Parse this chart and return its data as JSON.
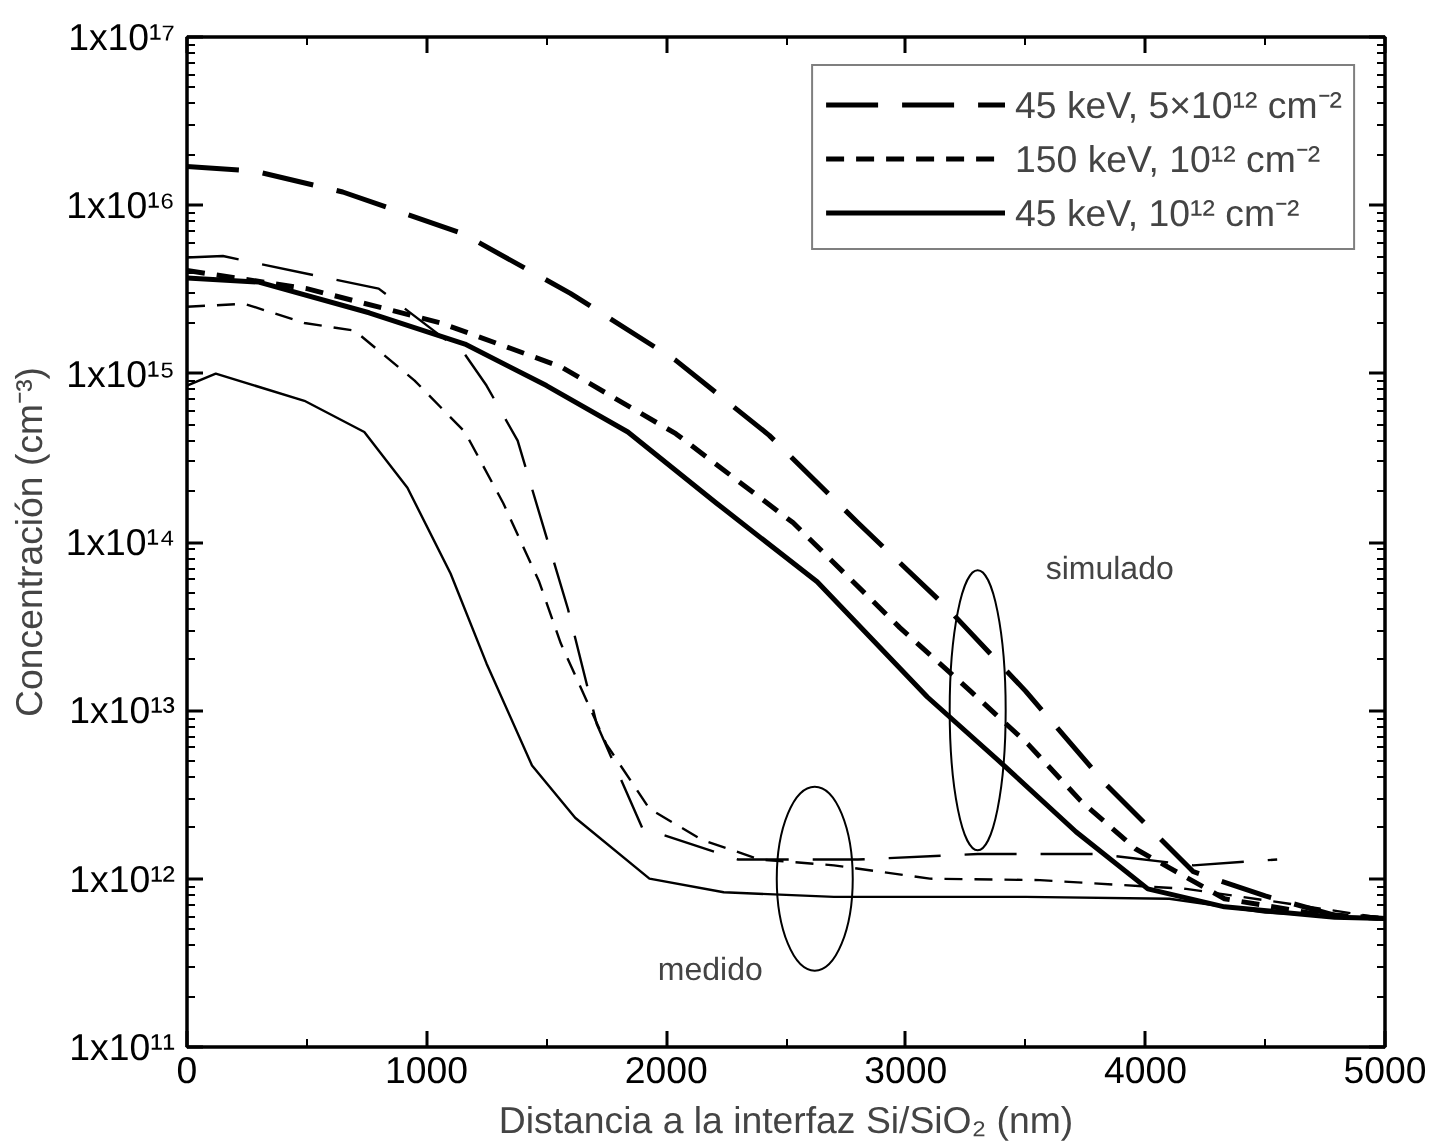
{
  "chart_data": {
    "type": "line",
    "xlabel": "Distancia a la interfaz Si/SiO₂ (nm)",
    "ylabel": "Concentración (cm⁻³)",
    "log": "y",
    "grid": false,
    "legend": "top right",
    "marker": "none",
    "xlim": [
      0,
      5000
    ],
    "xticks": [
      0,
      1000,
      2000,
      3000,
      4000,
      5000
    ],
    "ylim": [
      100000000000.0,
      1e+17
    ],
    "yticks": [
      {
        "value": 100000000000.0,
        "label": "1x10¹¹"
      },
      {
        "value": 1000000000000.0,
        "label": "1x10¹²"
      },
      {
        "value": 10000000000000.0,
        "label": "1x10¹³"
      },
      {
        "value": 100000000000000.0,
        "label": "1x10¹⁴"
      },
      {
        "value": 1000000000000000.0,
        "label": "1x10¹⁵"
      },
      {
        "value": 1e+16,
        "label": "1x10¹⁶"
      },
      {
        "value": 1e+17,
        "label": "1x10¹⁷"
      }
    ],
    "series": [
      {
        "name": "45 keV, 5×10¹² cm⁻²",
        "color": "#000000",
        "line_style": "dashed",
        "x": [
          0,
          280,
          650,
          1150,
          1600,
          2040,
          2430,
          2800,
          3170,
          3500,
          3830,
          4200,
          4500,
          4800,
          5000
        ],
        "values": [
          1.7e+16,
          1.6e+16,
          1.2e+16,
          6800000000000000.0,
          3000000000000000.0,
          1200000000000000.0,
          430000000000000.0,
          130000000000000.0,
          41000000000000.0,
          13000000000000.0,
          3700000000000.0,
          1100000000000.0,
          790000000000.0,
          600000000000.0,
          580000000000.0
        ]
      },
      {
        "name": "150 keV, 10¹² cm⁻²",
        "color": "#000000",
        "line_style": "dashed",
        "x": [
          0,
          500,
          1060,
          1560,
          2040,
          2530,
          2975,
          3270,
          3510,
          3730,
          3960,
          4330,
          4700,
          5000
        ],
        "values": [
          4100000000000000.0,
          3200000000000000.0,
          2000000000000000.0,
          1100000000000000.0,
          440000000000000.0,
          130000000000000.0,
          31000000000000.0,
          13000000000000.0,
          6300000000000.0,
          2900000000000.0,
          1500000000000.0,
          760000000000.0,
          620000000000.0,
          580000000000.0
        ]
      },
      {
        "name": "45 keV, 10¹² cm⁻²",
        "color": "#000000",
        "line_style": "solid",
        "x": [
          0,
          300,
          760,
          1160,
          1500,
          1840,
          2210,
          2630,
          3090,
          3410,
          3710,
          4010,
          4330,
          4790,
          5000
        ],
        "values": [
          3700000000000000.0,
          3500000000000000.0,
          2300000000000000.0,
          1500000000000000.0,
          850000000000000.0,
          450000000000000.0,
          170000000000000.0,
          58000000000000.0,
          12000000000000.0,
          4700000000000.0,
          1900000000000.0,
          870000000000.0,
          680000000000.0,
          590000000000.0,
          580000000000.0
        ]
      },
      {
        "color": "#000000",
        "line_style": "dashed",
        "x": [
          0,
          150,
          300,
          800,
          1160,
          1250,
          1380,
          1590,
          1710,
          1900,
          2300,
          2800,
          3300,
          3800,
          4200,
          4550
        ],
        "values": [
          4900000000000000.0,
          5000000000000000.0,
          4500000000000000.0,
          3200000000000000.0,
          1300000000000000.0,
          850000000000000.0,
          400000000000000.0,
          40000000000000.0,
          8300000000000.0,
          2000000000000.0,
          1300000000000.0,
          1300000000000.0,
          1400000000000.0,
          1400000000000.0,
          1200000000000.0,
          1300000000000.0
        ]
      },
      {
        "color": "#000000",
        "line_style": "dashed",
        "x": [
          0,
          240,
          490,
          700,
          950,
          1160,
          1320,
          1470,
          1560,
          1750,
          1930,
          2150,
          2390,
          2700,
          3100,
          3560,
          4170,
          4600,
          5000
        ],
        "values": [
          2500000000000000.0,
          2600000000000000.0,
          2000000000000000.0,
          1800000000000000.0,
          910000000000000.0,
          450000000000000.0,
          170000000000000.0,
          58000000000000.0,
          25000000000000.0,
          6300000000000.0,
          2600000000000.0,
          1700000000000.0,
          1300000000000.0,
          1200000000000.0,
          1000000000000.0,
          980000000000.0,
          870000000000.0,
          710000000000.0,
          580000000000.0
        ]
      },
      {
        "color": "#000000",
        "line_style": "solid",
        "x": [
          0,
          120,
          490,
          740,
          920,
          1100,
          1250,
          1440,
          1620,
          1930,
          2240,
          2700,
          3500,
          4100,
          4500,
          5000
        ],
        "values": [
          850000000000000.0,
          1000000000000000.0,
          690000000000000.0,
          450000000000000.0,
          210000000000000.0,
          65000000000000.0,
          19000000000000.0,
          4700000000000.0,
          2300000000000.0,
          1000000000000.0,
          830000000000.0,
          780000000000.0,
          780000000000.0,
          760000000000.0,
          630000000000.0,
          580000000000.0
        ]
      }
    ],
    "annotations": [
      "simulado",
      "medido"
    ]
  }
}
